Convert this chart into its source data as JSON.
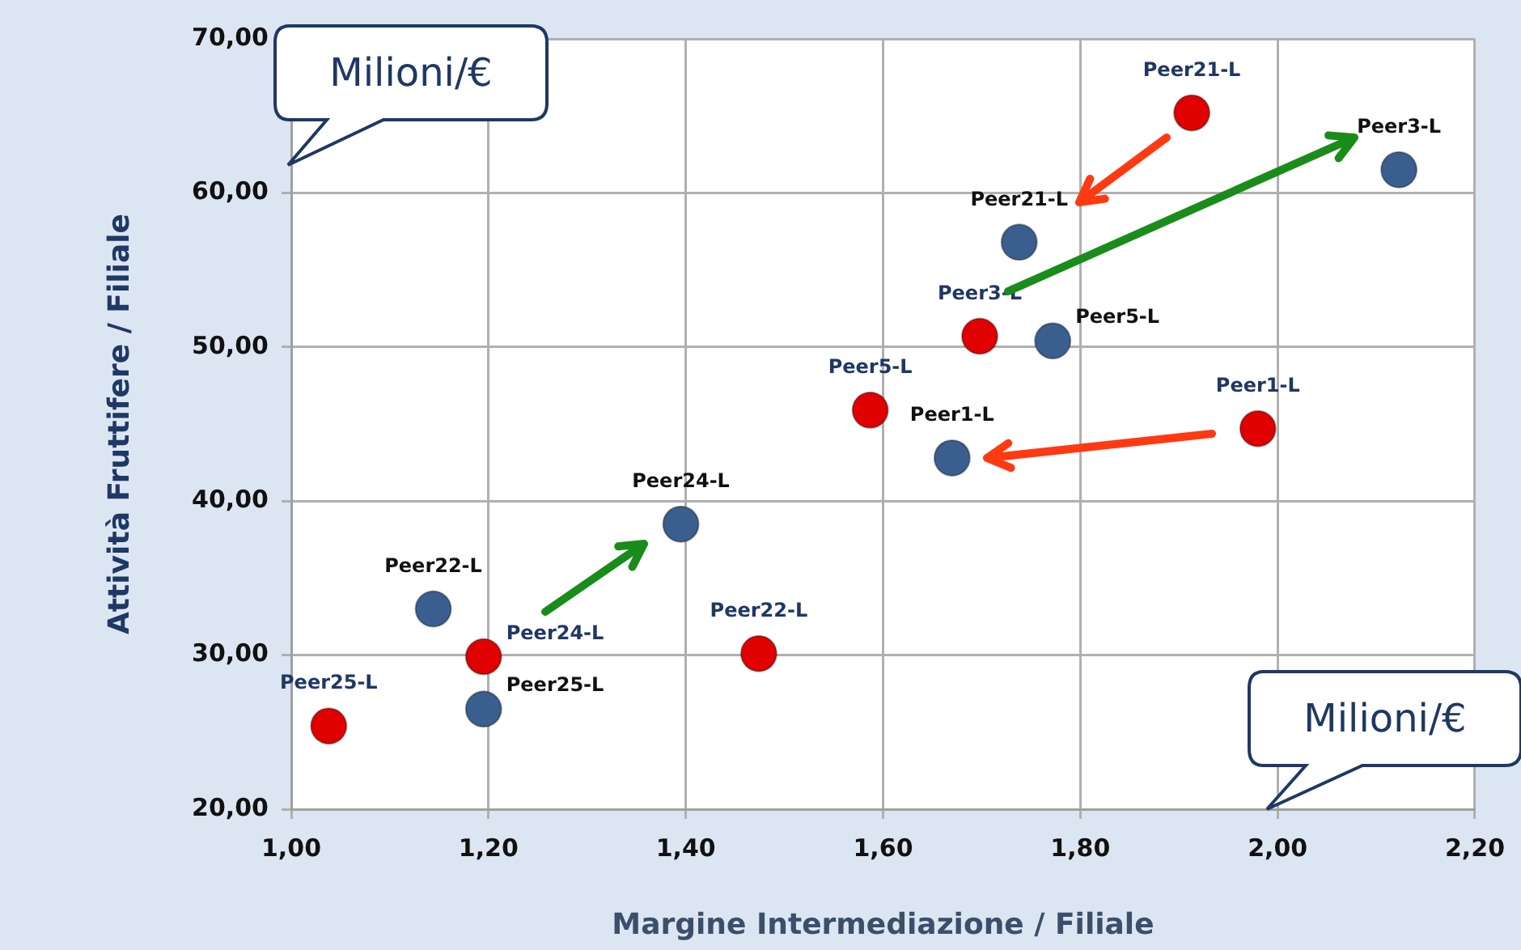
{
  "chart_data": {
    "type": "scatter",
    "xlabel": "Margine Intermediazione / Filiale",
    "ylabel": "Attività Fruttifere / Filiale",
    "series": [
      {
        "color": "#e00000",
        "x": [
          1.913,
          1.698,
          1.98,
          1.587,
          1.195,
          1.474,
          1.038
        ],
        "values": [
          65.2,
          50.7,
          44.7,
          45.9,
          29.9,
          30.1,
          25.4
        ]
      },
      {
        "color": "#3a5f8f",
        "x": [
          2.123,
          1.738,
          1.772,
          1.67,
          1.395,
          1.144,
          1.195
        ],
        "values": [
          61.5,
          56.8,
          50.4,
          42.8,
          38.5,
          33.0,
          26.5
        ]
      }
    ],
    "xlim": [
      1.0,
      2.2
    ],
    "xticks": [
      {
        "value": 1.0,
        "label": "1,00"
      },
      {
        "value": 1.2,
        "label": "1,20"
      },
      {
        "value": 1.4,
        "label": "1,40"
      },
      {
        "value": 1.6,
        "label": "1,60"
      },
      {
        "value": 1.8,
        "label": "1,80"
      },
      {
        "value": 2.0,
        "label": "2,00"
      },
      {
        "value": 2.2,
        "label": "2,20"
      }
    ],
    "ylim": [
      20,
      70
    ],
    "yticks": [
      {
        "value": 20,
        "label": "20,00"
      },
      {
        "value": 30,
        "label": "30,00"
      },
      {
        "value": 40,
        "label": "40,00"
      },
      {
        "value": 50,
        "label": "50,00"
      },
      {
        "value": 60,
        "label": "60,00"
      },
      {
        "value": 70,
        "label": "70,00"
      }
    ],
    "grid": true,
    "legend": false,
    "marker": "circle",
    "annotations": [
      "Milioni/€",
      "Milioni/€",
      {
        "text": "Peer21-L",
        "x": 1.913,
        "y": 65.2
      },
      {
        "text": "Peer3-L",
        "x": 1.698,
        "y": 50.7
      },
      {
        "text": "Peer1-L",
        "x": 1.98,
        "y": 44.7
      },
      {
        "text": "Peer5-L",
        "x": 1.587,
        "y": 45.9
      },
      {
        "text": "Peer24-L",
        "x": 1.195,
        "y": 29.9
      },
      {
        "text": "Peer22-L",
        "x": 1.474,
        "y": 30.1
      },
      {
        "text": "Peer25-L",
        "x": 1.038,
        "y": 25.4
      },
      {
        "text": "Peer3-L",
        "x": 2.123,
        "y": 61.5
      },
      {
        "text": "Peer21-L",
        "x": 1.738,
        "y": 56.8
      },
      {
        "text": "Peer5-L",
        "x": 1.772,
        "y": 50.4
      },
      {
        "text": "Peer1-L",
        "x": 1.67,
        "y": 42.8
      },
      {
        "text": "Peer24-L",
        "x": 1.395,
        "y": 38.5
      },
      {
        "text": "Peer22-L",
        "x": 1.144,
        "y": 33.0
      },
      {
        "text": "Peer25-L",
        "x": 1.195,
        "y": 26.5
      }
    ]
  }
}
